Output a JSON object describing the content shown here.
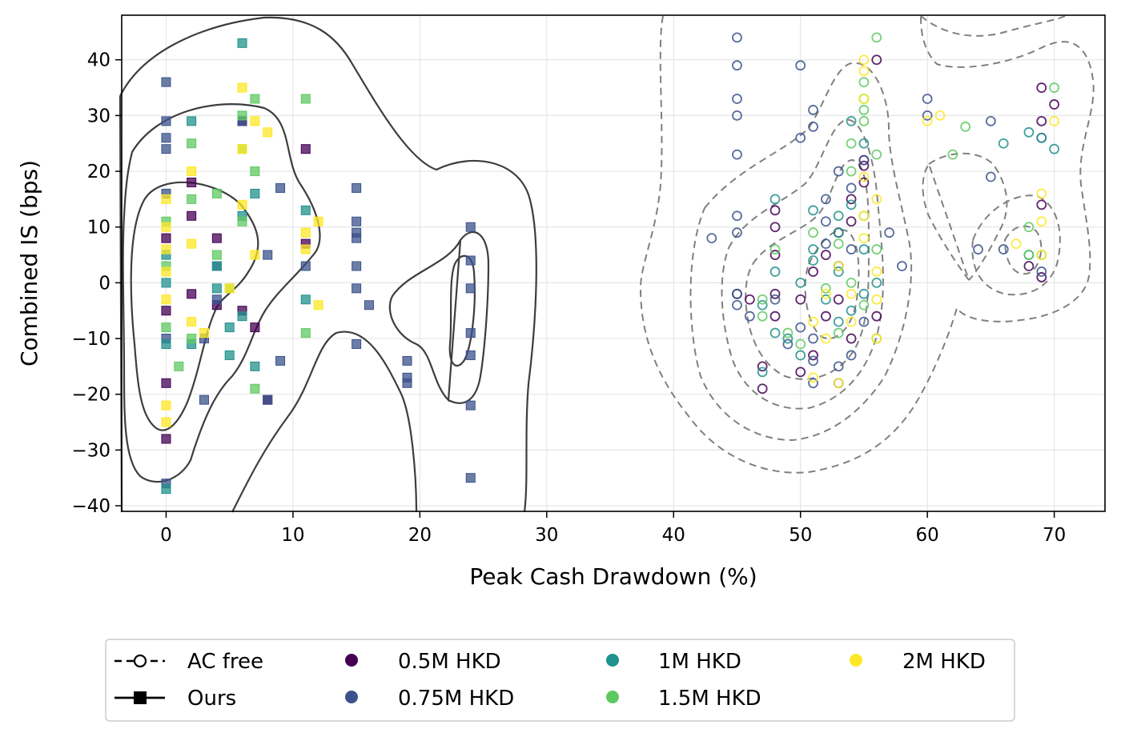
{
  "chart_data": {
    "type": "scatter",
    "xlabel": "Peak Cash Drawdown (%)",
    "ylabel": "Combined IS (bps)",
    "xlim": [
      -3.5,
      74
    ],
    "ylim": [
      -41,
      48
    ],
    "xticks": [
      "0",
      "10",
      "20",
      "30",
      "40",
      "50",
      "60",
      "70"
    ],
    "yticks": [
      "−40",
      "−30",
      "−20",
      "−10",
      "0",
      "10",
      "20",
      "30",
      "40"
    ],
    "grid": true,
    "legend_placement": "bottom-center",
    "methods": [
      {
        "name": "AC free",
        "marker": "open-circle",
        "contour": "dashed"
      },
      {
        "name": "Ours",
        "marker": "filled-square",
        "contour": "solid"
      }
    ],
    "sizes": [
      {
        "name": "0.5M HKD",
        "color": "#440154"
      },
      {
        "name": "0.75M HKD",
        "color": "#3b528b"
      },
      {
        "name": "1M HKD",
        "color": "#21918c"
      },
      {
        "name": "1.5M HKD",
        "color": "#5ec962"
      },
      {
        "name": "2M HKD",
        "color": "#fde725"
      }
    ],
    "series": [
      {
        "method": "Ours",
        "size": "0.5M HKD",
        "points": [
          [
            0,
            -28
          ],
          [
            0,
            -18
          ],
          [
            0,
            -5
          ],
          [
            0,
            8
          ],
          [
            2,
            18
          ],
          [
            2,
            12
          ],
          [
            2,
            -2
          ],
          [
            4,
            -4
          ],
          [
            4,
            8
          ],
          [
            6,
            -5
          ],
          [
            6,
            29
          ],
          [
            7,
            -8
          ],
          [
            8,
            -21
          ],
          [
            11,
            24
          ],
          [
            11,
            7
          ]
        ]
      },
      {
        "method": "Ours",
        "size": "0.75M HKD",
        "points": [
          [
            0,
            36
          ],
          [
            0,
            29
          ],
          [
            0,
            26
          ],
          [
            0,
            24
          ],
          [
            0,
            16
          ],
          [
            0,
            -36
          ],
          [
            0,
            -10
          ],
          [
            3,
            -10
          ],
          [
            3,
            -21
          ],
          [
            4,
            -3
          ],
          [
            4,
            3
          ],
          [
            6,
            29
          ],
          [
            8,
            5
          ],
          [
            8,
            -21
          ],
          [
            9,
            -14
          ],
          [
            9,
            17
          ],
          [
            11,
            3
          ],
          [
            15,
            17
          ],
          [
            15,
            11
          ],
          [
            15,
            9
          ],
          [
            15,
            8
          ],
          [
            15,
            3
          ],
          [
            16,
            -4
          ],
          [
            15,
            -1
          ],
          [
            15,
            -11
          ],
          [
            19,
            -18
          ],
          [
            19,
            -14
          ],
          [
            19,
            -17
          ],
          [
            24,
            10
          ],
          [
            24,
            4
          ],
          [
            24,
            -1
          ],
          [
            24,
            -9
          ],
          [
            24,
            -13
          ],
          [
            24,
            -22
          ],
          [
            24,
            -35
          ]
        ]
      },
      {
        "method": "Ours",
        "size": "1M HKD",
        "points": [
          [
            0,
            -37
          ],
          [
            0,
            -11
          ],
          [
            0,
            0
          ],
          [
            0,
            5
          ],
          [
            2,
            29
          ],
          [
            2,
            -11
          ],
          [
            4,
            -1
          ],
          [
            4,
            3
          ],
          [
            5,
            -8
          ],
          [
            5,
            -13
          ],
          [
            6,
            43
          ],
          [
            6,
            12
          ],
          [
            6,
            -6
          ],
          [
            7,
            16
          ],
          [
            7,
            -15
          ],
          [
            11,
            13
          ],
          [
            11,
            -3
          ]
        ]
      },
      {
        "method": "Ours",
        "size": "1.5M HKD",
        "points": [
          [
            0,
            11
          ],
          [
            0,
            3
          ],
          [
            0,
            -8
          ],
          [
            1,
            -15
          ],
          [
            2,
            15
          ],
          [
            2,
            -10
          ],
          [
            2,
            25
          ],
          [
            4,
            16
          ],
          [
            4,
            5
          ],
          [
            5,
            -1
          ],
          [
            6,
            30
          ],
          [
            6,
            24
          ],
          [
            6,
            11
          ],
          [
            7,
            20
          ],
          [
            7,
            33
          ],
          [
            7,
            -19
          ],
          [
            11,
            33
          ],
          [
            11,
            -9
          ]
        ]
      },
      {
        "method": "Ours",
        "size": "2M HKD",
        "points": [
          [
            0,
            15
          ],
          [
            0,
            10
          ],
          [
            0,
            6
          ],
          [
            0,
            2
          ],
          [
            0,
            -3
          ],
          [
            0,
            -22
          ],
          [
            0,
            -25
          ],
          [
            2,
            20
          ],
          [
            2,
            7
          ],
          [
            2,
            -7
          ],
          [
            3,
            -9
          ],
          [
            5,
            -1
          ],
          [
            6,
            35
          ],
          [
            6,
            24
          ],
          [
            6,
            14
          ],
          [
            7,
            29
          ],
          [
            7,
            5
          ],
          [
            8,
            27
          ],
          [
            11,
            9
          ],
          [
            11,
            6
          ],
          [
            12,
            11
          ],
          [
            12,
            -4
          ]
        ]
      },
      {
        "method": "AC free",
        "size": "0.5M HKD",
        "points": [
          [
            45,
            -2
          ],
          [
            46,
            -3
          ],
          [
            47,
            -15
          ],
          [
            47,
            -19
          ],
          [
            48,
            13
          ],
          [
            48,
            10
          ],
          [
            48,
            5
          ],
          [
            48,
            -2
          ],
          [
            48,
            -6
          ],
          [
            50,
            -3
          ],
          [
            50,
            -16
          ],
          [
            51,
            2
          ],
          [
            51,
            -13
          ],
          [
            52,
            5
          ],
          [
            52,
            -6
          ],
          [
            53,
            9
          ],
          [
            53,
            -3
          ],
          [
            54,
            11
          ],
          [
            54,
            15
          ],
          [
            54,
            -10
          ],
          [
            55,
            22
          ],
          [
            55,
            18
          ],
          [
            55,
            21
          ],
          [
            56,
            40
          ],
          [
            56,
            -6
          ],
          [
            69,
            35
          ],
          [
            69,
            29
          ],
          [
            69,
            14
          ],
          [
            69,
            1
          ],
          [
            70,
            32
          ],
          [
            68,
            3
          ]
        ]
      },
      {
        "method": "AC free",
        "size": "0.75M HKD",
        "points": [
          [
            43,
            8
          ],
          [
            45,
            44
          ],
          [
            45,
            39
          ],
          [
            45,
            33
          ],
          [
            45,
            30
          ],
          [
            45,
            23
          ],
          [
            45,
            12
          ],
          [
            45,
            9
          ],
          [
            45,
            -2
          ],
          [
            45,
            -4
          ],
          [
            46,
            -6
          ],
          [
            48,
            -3
          ],
          [
            49,
            -11
          ],
          [
            50,
            -8
          ],
          [
            50,
            39
          ],
          [
            50,
            26
          ],
          [
            51,
            31
          ],
          [
            51,
            28
          ],
          [
            51,
            -14
          ],
          [
            51,
            -18
          ],
          [
            51,
            -10
          ],
          [
            52,
            15
          ],
          [
            52,
            11
          ],
          [
            52,
            7
          ],
          [
            53,
            -15
          ],
          [
            53,
            -18
          ],
          [
            53,
            20
          ],
          [
            53,
            3
          ],
          [
            54,
            17
          ],
          [
            54,
            6
          ],
          [
            54,
            -13
          ],
          [
            55,
            -7
          ],
          [
            55,
            22
          ],
          [
            57,
            9
          ],
          [
            58,
            3
          ],
          [
            60,
            33
          ],
          [
            60,
            30
          ],
          [
            65,
            29
          ],
          [
            65,
            19
          ],
          [
            64,
            6
          ],
          [
            66,
            6
          ],
          [
            69,
            26
          ],
          [
            69,
            2
          ]
        ]
      },
      {
        "method": "AC free",
        "size": "1M HKD",
        "points": [
          [
            47,
            -4
          ],
          [
            47,
            -16
          ],
          [
            48,
            15
          ],
          [
            48,
            2
          ],
          [
            48,
            -9
          ],
          [
            49,
            -10
          ],
          [
            50,
            0
          ],
          [
            50,
            -13
          ],
          [
            51,
            13
          ],
          [
            51,
            6
          ],
          [
            51,
            4
          ],
          [
            52,
            -3
          ],
          [
            53,
            12
          ],
          [
            53,
            9
          ],
          [
            53,
            2
          ],
          [
            53,
            -7
          ],
          [
            54,
            29
          ],
          [
            54,
            14
          ],
          [
            54,
            -5
          ],
          [
            55,
            25
          ],
          [
            55,
            6
          ],
          [
            55,
            -2
          ],
          [
            56,
            0
          ],
          [
            66,
            25
          ],
          [
            68,
            27
          ],
          [
            69,
            26
          ],
          [
            68,
            5
          ],
          [
            70,
            24
          ]
        ]
      },
      {
        "method": "AC free",
        "size": "1.5M HKD",
        "points": [
          [
            47,
            -3
          ],
          [
            47,
            -6
          ],
          [
            48,
            6
          ],
          [
            49,
            -9
          ],
          [
            50,
            -11
          ],
          [
            51,
            9
          ],
          [
            52,
            -1
          ],
          [
            53,
            -9
          ],
          [
            53,
            7
          ],
          [
            54,
            25
          ],
          [
            54,
            20
          ],
          [
            54,
            0
          ],
          [
            55,
            36
          ],
          [
            55,
            33
          ],
          [
            55,
            31
          ],
          [
            55,
            29
          ],
          [
            55,
            12
          ],
          [
            55,
            -4
          ],
          [
            56,
            44
          ],
          [
            56,
            23
          ],
          [
            56,
            6
          ],
          [
            56,
            -10
          ],
          [
            62,
            23
          ],
          [
            63,
            28
          ],
          [
            68,
            10
          ],
          [
            68,
            5
          ],
          [
            70,
            35
          ],
          [
            69,
            5
          ]
        ]
      },
      {
        "method": "AC free",
        "size": "2M HKD",
        "points": [
          [
            51,
            -17
          ],
          [
            51,
            -7
          ],
          [
            52,
            -2
          ],
          [
            52,
            -10
          ],
          [
            53,
            -18
          ],
          [
            53,
            3
          ],
          [
            54,
            -2
          ],
          [
            54,
            -7
          ],
          [
            55,
            40
          ],
          [
            55,
            38
          ],
          [
            55,
            33
          ],
          [
            55,
            19
          ],
          [
            55,
            12
          ],
          [
            55,
            8
          ],
          [
            56,
            -3
          ],
          [
            56,
            15
          ],
          [
            56,
            2
          ],
          [
            56,
            -10
          ],
          [
            60,
            29
          ],
          [
            61,
            30
          ],
          [
            67,
            7
          ],
          [
            69,
            16
          ],
          [
            69,
            11
          ],
          [
            69,
            5
          ],
          [
            70,
            29
          ]
        ]
      }
    ],
    "contours_note": "kernel density contours per method"
  },
  "legend": {
    "method_labels": [
      "AC free",
      "Ours"
    ],
    "size_labels": [
      "0.5M HKD",
      "0.75M HKD",
      "1M HKD",
      "1.5M HKD",
      "2M HKD"
    ]
  }
}
